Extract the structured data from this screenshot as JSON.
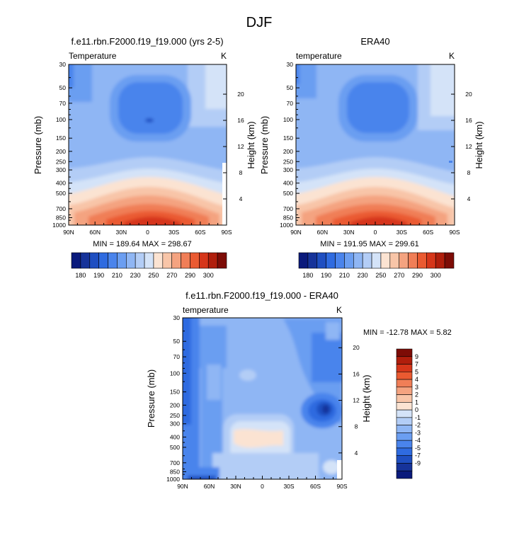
{
  "page_title": "DJF",
  "colors": {
    "abs_levels": [
      "#0a1a7c",
      "#16339a",
      "#1f4fc1",
      "#2f6be0",
      "#4a84ec",
      "#6b9ef1",
      "#8fb6f4",
      "#b3cdf6",
      "#d4e3f8",
      "#fbe3d2",
      "#f8c5a8",
      "#f4a380",
      "#f07e57",
      "#ea5a31",
      "#d6361a",
      "#b01e0c",
      "#7d0c06"
    ],
    "diff_levels": [
      "#0a1a7c",
      "#16339a",
      "#1f4fc1",
      "#2f6be0",
      "#4a84ec",
      "#6b9ef1",
      "#8fb6f4",
      "#b3cdf6",
      "#d4e3f8",
      "#fbe3d2",
      "#f8c5a8",
      "#f4a380",
      "#f07e57",
      "#ea5a31",
      "#d6361a",
      "#b01e0c",
      "#7d0c06"
    ]
  },
  "chart_data": [
    {
      "type": "contour",
      "title": "f.e11.rbn.F2000.f19_f19.000 (yrs 2-5)",
      "left_label": "Temperature",
      "units": "K",
      "ylabel": "Pressure (mb)",
      "ylabel_right": "Height (km)",
      "x_ticks": [
        "90N",
        "60N",
        "30N",
        "0",
        "30S",
        "60S",
        "90S"
      ],
      "y_ticks": [
        "30",
        "50",
        "70",
        "100",
        "150",
        "200",
        "250",
        "300",
        "400",
        "500",
        "700",
        "850",
        "1000"
      ],
      "y_ticks_right": [
        "20",
        "16",
        "12",
        "8",
        "4"
      ],
      "min": 189.64,
      "max": 298.67,
      "minmax_text": "MIN = 189.64   MAX = 298.67",
      "colorbar_labels": [
        "180",
        "190",
        "210",
        "230",
        "250",
        "270",
        "290",
        "300"
      ]
    },
    {
      "type": "contour",
      "title": "ERA40",
      "left_label": "temperature",
      "units": "K",
      "ylabel": "Pressure (mb)",
      "ylabel_right": "Height (km)",
      "x_ticks": [
        "90N",
        "60N",
        "30N",
        "0",
        "30S",
        "60S",
        "90S"
      ],
      "y_ticks": [
        "30",
        "50",
        "70",
        "100",
        "150",
        "200",
        "250",
        "300",
        "400",
        "500",
        "700",
        "850",
        "1000"
      ],
      "y_ticks_right": [
        "20",
        "16",
        "12",
        "8",
        "4"
      ],
      "min": 191.95,
      "max": 299.61,
      "minmax_text": "MIN = 191.95   MAX = 299.61",
      "colorbar_labels": [
        "180",
        "190",
        "210",
        "230",
        "250",
        "270",
        "290",
        "300"
      ]
    },
    {
      "type": "contour",
      "title": "f.e11.rbn.F2000.f19_f19.000 - ERA40",
      "left_label": "temperature",
      "units": "K",
      "ylabel": "Pressure (mb)",
      "ylabel_right": "Height (km)",
      "x_ticks": [
        "90N",
        "60N",
        "30N",
        "0",
        "30S",
        "60S",
        "90S"
      ],
      "y_ticks": [
        "30",
        "50",
        "70",
        "100",
        "150",
        "200",
        "250",
        "300",
        "400",
        "500",
        "700",
        "850",
        "1000"
      ],
      "y_ticks_right": [
        "20",
        "16",
        "12",
        "8",
        "4"
      ],
      "min": -12.78,
      "max": 5.82,
      "minmax_text": "MIN = -12.78  MAX =   5.82",
      "colorbar_labels": [
        "9",
        "7",
        "5",
        "4",
        "3",
        "2",
        "1",
        "0",
        "-1",
        "-2",
        "-3",
        "-4",
        "-5",
        "-7",
        "-9"
      ]
    }
  ]
}
